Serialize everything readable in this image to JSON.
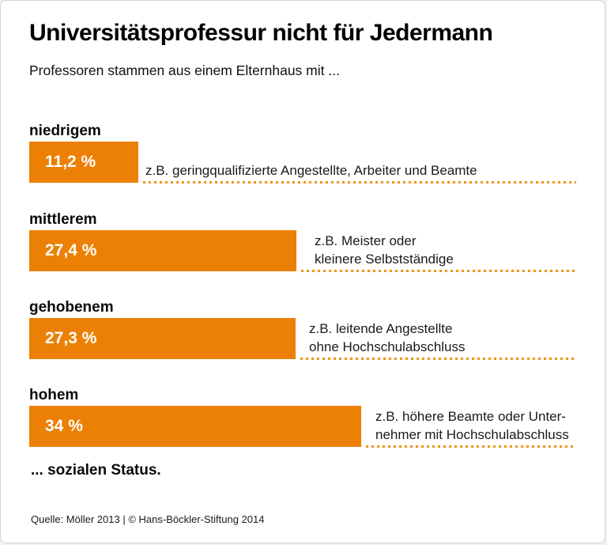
{
  "header": {
    "title": "Universitätsprofessur nicht für Jedermann",
    "subtitle": "Professoren stammen aus einem Elternhaus mit ..."
  },
  "footer": {
    "closing": "... sozialen Status.",
    "source": "Quelle: Möller 2013 | © Hans-Böckler-Stiftung 2014"
  },
  "colors": {
    "bar_orange": "#EC8005",
    "dot_orange": "#F0940E",
    "border_gray": "#D3D3D3",
    "white": "#FFFFFF"
  },
  "chart_data": {
    "type": "bar",
    "orientation": "horizontal",
    "title": "Universitätsprofessur nicht für Jedermann",
    "subtitle": "Professoren stammen aus einem Elternhaus mit ... sozialen Status.",
    "categories": [
      "niedrigem",
      "mittlerem",
      "gehobenem",
      "hohem"
    ],
    "values": [
      11.2,
      27.4,
      27.3,
      34
    ],
    "value_labels": [
      "11,2 %",
      "27,4 %",
      "27,3 %",
      "34 %"
    ],
    "unit": "%",
    "xlim": [
      0,
      40
    ],
    "grid": false,
    "legend": false,
    "bar_color": "#EC8005",
    "desc_lines": [
      [
        "z.B. geringqualifizierte Angestellte, Arbeiter und Beamte"
      ],
      [
        "z.B. Meister oder",
        "kleinere Selbstständige"
      ],
      [
        "z.B. leitende Angestellte",
        "ohne Hochschulabschluss"
      ],
      [
        "z.B. höhere Beamte oder Unter-",
        "nehmer mit Hochschulabschluss"
      ]
    ]
  }
}
